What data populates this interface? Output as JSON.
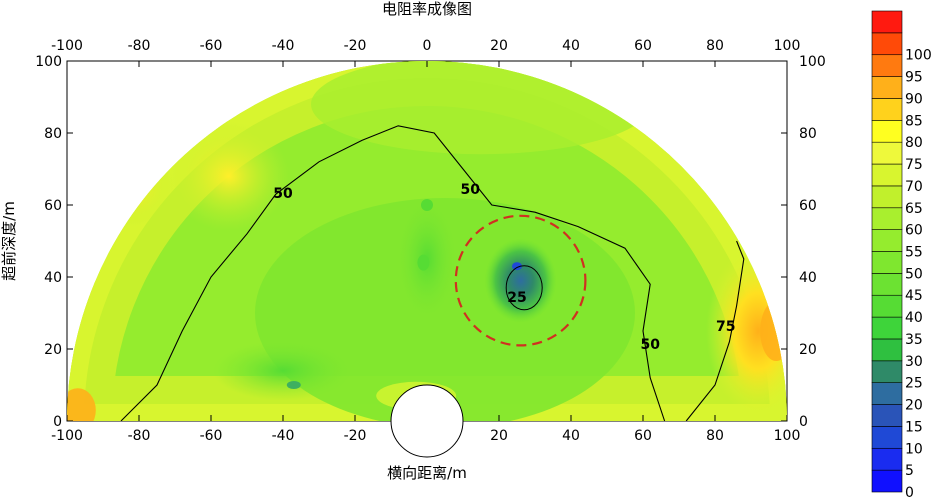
{
  "chart_data": {
    "type": "heatmap",
    "subtype": "semicircular resistivity contour map",
    "title": "电阻率成像图",
    "xlabel": "横向距离/m",
    "ylabel": "超前深度/m",
    "xlim": [
      -100,
      100
    ],
    "ylim": [
      0,
      100
    ],
    "xticks": [
      -100,
      -80,
      -60,
      -40,
      -20,
      0,
      20,
      40,
      60,
      80,
      100
    ],
    "yticks": [
      0,
      20,
      40,
      60,
      80,
      100
    ],
    "colorbar": {
      "ticks": [
        0,
        5,
        10,
        15,
        20,
        25,
        30,
        35,
        40,
        45,
        50,
        55,
        60,
        65,
        70,
        75,
        80,
        85,
        90,
        95,
        100
      ],
      "colors": [
        "#1010ff",
        "#1a2cf0",
        "#1f49d6",
        "#2a54b8",
        "#2e6da0",
        "#2f8a68",
        "#2fc040",
        "#3ed43a",
        "#56dc34",
        "#6ce232",
        "#7fe72f",
        "#95ec2e",
        "#a9ef2e",
        "#c1f02c",
        "#d8f52f",
        "#eef93b",
        "#ffff20",
        "#ffd21c",
        "#ffb01a",
        "#ff7a10",
        "#ff4a08",
        "#ff1a10"
      ]
    },
    "contour_labels": [
      {
        "text": "50",
        "x": -40,
        "y": 62
      },
      {
        "text": "50",
        "x": 12,
        "y": 63
      },
      {
        "text": "25",
        "x": 25,
        "y": 33
      },
      {
        "text": "50",
        "x": 62,
        "y": 20
      },
      {
        "text": "75",
        "x": 83,
        "y": 25
      }
    ],
    "low_resistivity_anomaly": {
      "center_x": 26,
      "center_y": 39,
      "radius": 18
    },
    "colors": {
      "marker_circle": "#d03020",
      "contour_line": "#000000"
    }
  }
}
